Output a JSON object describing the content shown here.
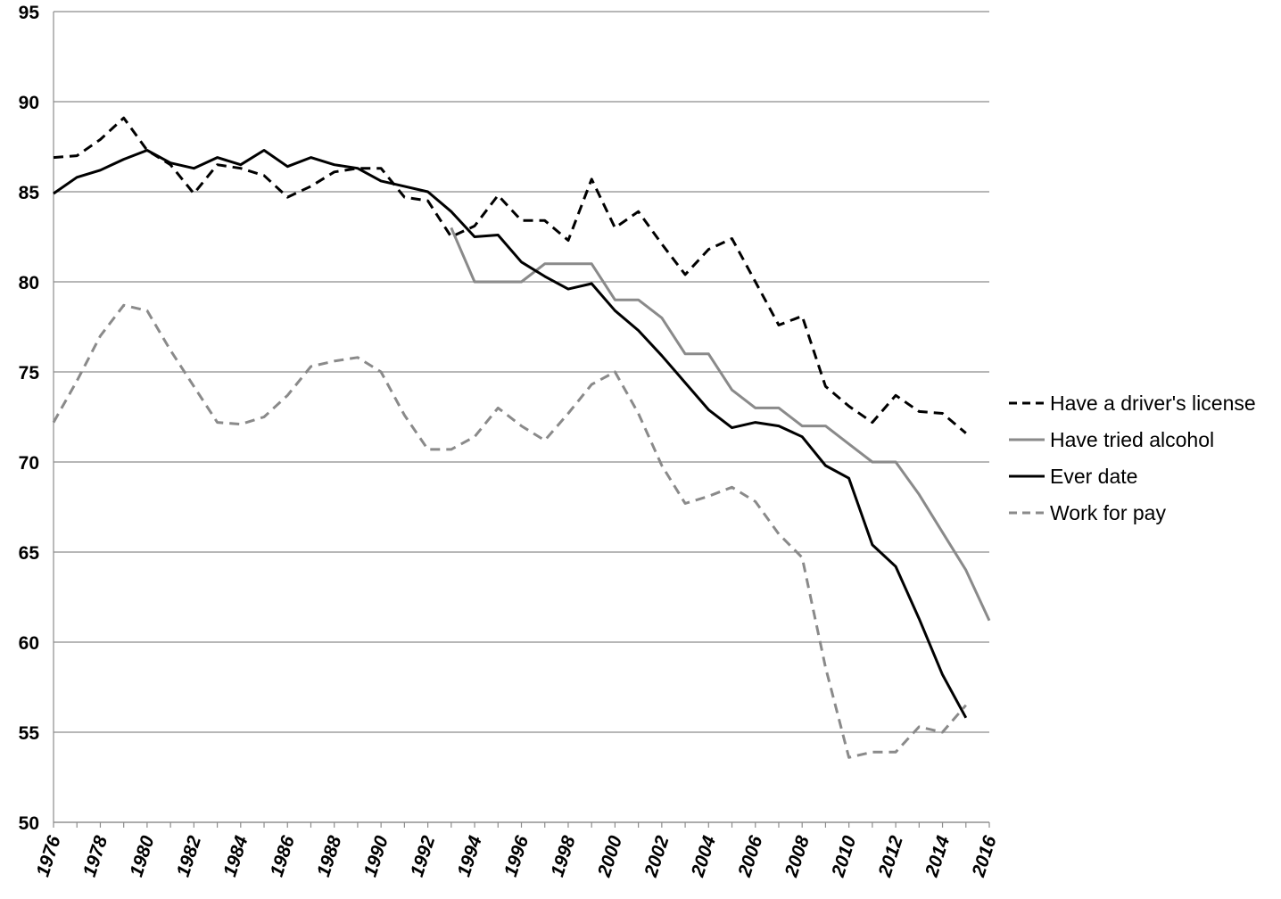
{
  "chart_data": {
    "type": "line",
    "title": "",
    "xlabel": "",
    "ylabel": "",
    "ylim": [
      50,
      95
    ],
    "yticks": [
      50,
      55,
      60,
      65,
      70,
      75,
      80,
      85,
      90,
      95
    ],
    "xlim": [
      1976,
      2016
    ],
    "xticks": [
      1976,
      1978,
      1980,
      1982,
      1984,
      1986,
      1988,
      1990,
      1992,
      1994,
      1996,
      1998,
      2000,
      2002,
      2004,
      2006,
      2008,
      2010,
      2012,
      2014,
      2016
    ],
    "grid": "horizontal",
    "legend_position": "right",
    "series": [
      {
        "name": "Have a driver's license",
        "color": "#000000",
        "dash": "dashed",
        "x": [
          1976,
          1977,
          1978,
          1979,
          1980,
          1981,
          1982,
          1983,
          1984,
          1985,
          1986,
          1987,
          1988,
          1989,
          1990,
          1991,
          1992,
          1993,
          1994,
          1995,
          1996,
          1997,
          1998,
          1999,
          2000,
          2001,
          2002,
          2003,
          2004,
          2005,
          2006,
          2007,
          2008,
          2009,
          2010,
          2011,
          2012,
          2013,
          2014,
          2015
        ],
        "values": [
          86.9,
          87.0,
          87.9,
          89.1,
          87.3,
          86.5,
          84.9,
          86.5,
          86.3,
          85.9,
          84.7,
          85.3,
          86.1,
          86.3,
          86.3,
          84.7,
          84.5,
          82.5,
          83.1,
          84.8,
          83.4,
          83.4,
          82.3,
          85.7,
          83.0,
          83.9,
          82.1,
          80.4,
          81.8,
          82.4,
          80.0,
          77.6,
          78.1,
          74.2,
          73.1,
          72.2,
          73.7,
          72.8,
          72.7,
          71.6
        ]
      },
      {
        "name": "Have tried alcohol",
        "color": "#8a8a8a",
        "dash": "solid",
        "x": [
          1993,
          1994,
          1995,
          1996,
          1997,
          1998,
          1999,
          2000,
          2001,
          2002,
          2003,
          2004,
          2005,
          2006,
          2007,
          2008,
          2009,
          2010,
          2011,
          2012,
          2013,
          2014,
          2015,
          2016
        ],
        "values": [
          83,
          80,
          80,
          80,
          81,
          81,
          81,
          79,
          79,
          78,
          76,
          76,
          74,
          73,
          73,
          72,
          72,
          71,
          70,
          70,
          68.2,
          66.1,
          64.0,
          61.2
        ]
      },
      {
        "name": "Ever date",
        "color": "#000000",
        "dash": "solid",
        "x": [
          1976,
          1977,
          1978,
          1979,
          1980,
          1981,
          1982,
          1983,
          1984,
          1985,
          1986,
          1987,
          1988,
          1989,
          1990,
          1991,
          1992,
          1993,
          1994,
          1995,
          1996,
          1997,
          1998,
          1999,
          2000,
          2001,
          2002,
          2003,
          2004,
          2005,
          2006,
          2007,
          2008,
          2009,
          2010,
          2011,
          2012,
          2013,
          2014,
          2015
        ],
        "values": [
          84.9,
          85.8,
          86.2,
          86.8,
          87.3,
          86.6,
          86.3,
          86.9,
          86.5,
          87.3,
          86.4,
          86.9,
          86.5,
          86.3,
          85.6,
          85.3,
          85.0,
          83.9,
          82.5,
          82.6,
          81.1,
          80.3,
          79.6,
          79.9,
          78.4,
          77.3,
          75.9,
          74.4,
          72.9,
          71.9,
          72.2,
          72.0,
          71.4,
          69.8,
          69.1,
          65.4,
          64.2,
          61.3,
          58.2,
          55.8
        ]
      },
      {
        "name": "Work for pay",
        "color": "#8a8a8a",
        "dash": "dashed",
        "x": [
          1976,
          1977,
          1978,
          1979,
          1980,
          1981,
          1982,
          1983,
          1984,
          1985,
          1986,
          1987,
          1988,
          1989,
          1990,
          1991,
          1992,
          1993,
          1994,
          1995,
          1996,
          1997,
          1998,
          1999,
          2000,
          2001,
          2002,
          2003,
          2004,
          2005,
          2006,
          2007,
          2008,
          2009,
          2010,
          2011,
          2012,
          2013,
          2014,
          2015
        ],
        "values": [
          72.2,
          74.5,
          77.0,
          78.7,
          78.4,
          76.2,
          74.2,
          72.2,
          72.1,
          72.5,
          73.7,
          75.3,
          75.6,
          75.8,
          75.0,
          72.6,
          70.7,
          70.7,
          71.4,
          73.0,
          72.0,
          71.2,
          72.7,
          74.3,
          75.0,
          72.7,
          69.8,
          67.7,
          68.1,
          68.6,
          67.8,
          66.0,
          64.7,
          58.6,
          53.6,
          53.9,
          53.9,
          55.3,
          55.0,
          56.5
        ]
      }
    ]
  }
}
